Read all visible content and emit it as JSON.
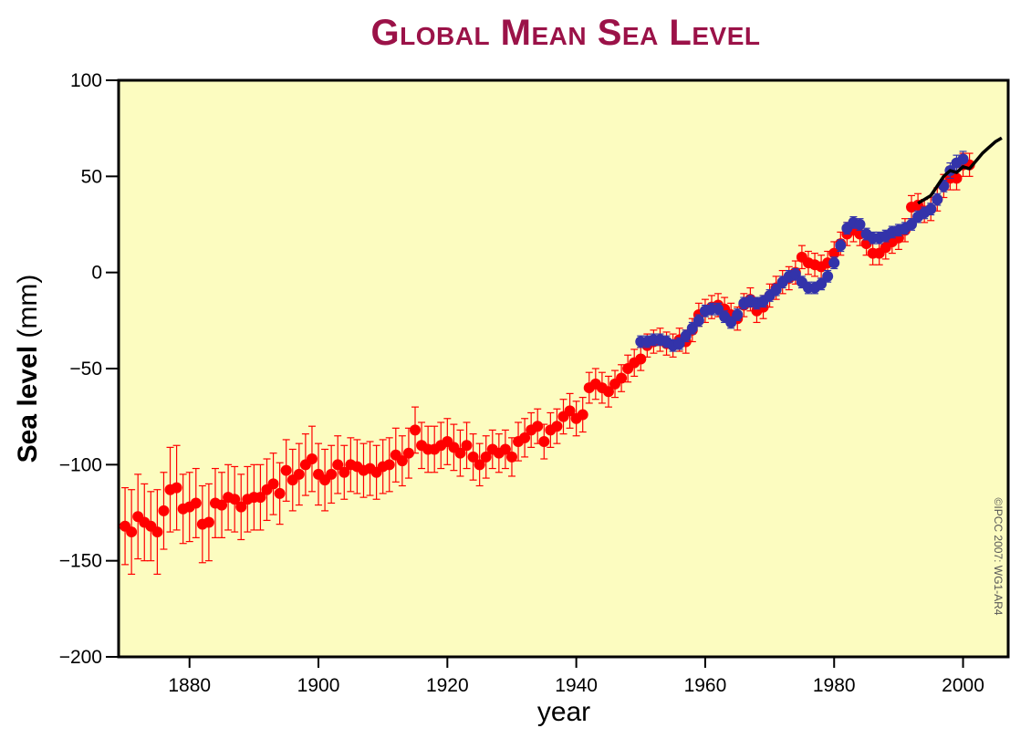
{
  "chart_data": {
    "type": "scatter",
    "title": "Global Mean Sea Level",
    "xlabel": "year",
    "ylabel": "Sea level (mm)",
    "xlim": [
      1869,
      2007
    ],
    "ylim": [
      -200,
      100
    ],
    "x_ticks": [
      1880,
      1900,
      1920,
      1940,
      1960,
      1980,
      2000
    ],
    "y_ticks": [
      100,
      50,
      0,
      -50,
      -100,
      -150,
      -200
    ],
    "y_tick_labels": [
      "100",
      "50",
      "0",
      "−50",
      "−100",
      "−150",
      "−200"
    ],
    "grid": false,
    "background_color": "#fcfcc0",
    "credit": "©IPCC 2007: WG1-AR4",
    "series": [
      {
        "color": "#ff0000",
        "marker": "circle-with-errorbars",
        "points": [
          [
            1870,
            -132,
            20
          ],
          [
            1871,
            -135,
            22
          ],
          [
            1872,
            -127,
            22
          ],
          [
            1873,
            -130,
            20
          ],
          [
            1874,
            -132,
            18
          ],
          [
            1875,
            -135,
            22
          ],
          [
            1876,
            -124,
            20
          ],
          [
            1877,
            -113,
            22
          ],
          [
            1878,
            -112,
            22
          ],
          [
            1879,
            -123,
            18
          ],
          [
            1880,
            -122,
            18
          ],
          [
            1881,
            -120,
            18
          ],
          [
            1882,
            -131,
            20
          ],
          [
            1883,
            -130,
            20
          ],
          [
            1884,
            -120,
            18
          ],
          [
            1885,
            -121,
            17
          ],
          [
            1886,
            -117,
            17
          ],
          [
            1887,
            -118,
            17
          ],
          [
            1888,
            -122,
            17
          ],
          [
            1889,
            -118,
            17
          ],
          [
            1890,
            -117,
            17
          ],
          [
            1891,
            -117,
            17
          ],
          [
            1892,
            -113,
            16
          ],
          [
            1893,
            -110,
            16
          ],
          [
            1894,
            -115,
            16
          ],
          [
            1895,
            -103,
            16
          ],
          [
            1896,
            -108,
            16
          ],
          [
            1897,
            -105,
            16
          ],
          [
            1898,
            -100,
            16
          ],
          [
            1899,
            -97,
            17
          ],
          [
            1900,
            -105,
            16
          ],
          [
            1901,
            -108,
            16
          ],
          [
            1902,
            -105,
            15
          ],
          [
            1903,
            -100,
            15
          ],
          [
            1904,
            -104,
            14
          ],
          [
            1905,
            -100,
            14
          ],
          [
            1906,
            -101,
            14
          ],
          [
            1907,
            -103,
            14
          ],
          [
            1908,
            -102,
            14
          ],
          [
            1909,
            -104,
            14
          ],
          [
            1910,
            -101,
            14
          ],
          [
            1911,
            -100,
            14
          ],
          [
            1912,
            -95,
            14
          ],
          [
            1913,
            -98,
            13
          ],
          [
            1914,
            -94,
            13
          ],
          [
            1915,
            -82,
            12
          ],
          [
            1916,
            -90,
            12
          ],
          [
            1917,
            -92,
            12
          ],
          [
            1918,
            -92,
            12
          ],
          [
            1919,
            -90,
            12
          ],
          [
            1920,
            -88,
            12
          ],
          [
            1921,
            -91,
            12
          ],
          [
            1922,
            -94,
            12
          ],
          [
            1923,
            -90,
            12
          ],
          [
            1924,
            -96,
            12
          ],
          [
            1925,
            -100,
            11
          ],
          [
            1926,
            -96,
            11
          ],
          [
            1927,
            -92,
            10
          ],
          [
            1928,
            -94,
            10
          ],
          [
            1929,
            -92,
            10
          ],
          [
            1930,
            -96,
            10
          ],
          [
            1931,
            -88,
            10
          ],
          [
            1932,
            -86,
            10
          ],
          [
            1933,
            -82,
            9
          ],
          [
            1934,
            -80,
            9
          ],
          [
            1935,
            -88,
            9
          ],
          [
            1936,
            -82,
            9
          ],
          [
            1937,
            -80,
            9
          ],
          [
            1938,
            -75,
            9
          ],
          [
            1939,
            -72,
            9
          ],
          [
            1940,
            -76,
            9
          ],
          [
            1941,
            -74,
            9
          ],
          [
            1942,
            -60,
            8
          ],
          [
            1943,
            -58,
            8
          ],
          [
            1944,
            -60,
            8
          ],
          [
            1945,
            -62,
            8
          ],
          [
            1946,
            -58,
            7
          ],
          [
            1947,
            -55,
            7
          ],
          [
            1948,
            -50,
            7
          ],
          [
            1949,
            -47,
            7
          ],
          [
            1950,
            -45,
            6
          ],
          [
            1951,
            -38,
            6
          ],
          [
            1952,
            -36,
            6
          ],
          [
            1953,
            -35,
            6
          ],
          [
            1954,
            -37,
            6
          ],
          [
            1955,
            -38,
            6
          ],
          [
            1956,
            -35,
            6
          ],
          [
            1957,
            -36,
            6
          ],
          [
            1958,
            -30,
            6
          ],
          [
            1959,
            -22,
            6
          ],
          [
            1960,
            -20,
            6
          ],
          [
            1961,
            -18,
            6
          ],
          [
            1962,
            -17,
            6
          ],
          [
            1963,
            -19,
            6
          ],
          [
            1964,
            -22,
            6
          ],
          [
            1965,
            -24,
            6
          ],
          [
            1966,
            -17,
            6
          ],
          [
            1967,
            -14,
            6
          ],
          [
            1968,
            -20,
            6
          ],
          [
            1969,
            -18,
            6
          ],
          [
            1970,
            -12,
            6
          ],
          [
            1971,
            -8,
            6
          ],
          [
            1972,
            -5,
            6
          ],
          [
            1973,
            -3,
            6
          ],
          [
            1974,
            0,
            6
          ],
          [
            1975,
            8,
            6
          ],
          [
            1976,
            5,
            6
          ],
          [
            1977,
            4,
            6
          ],
          [
            1978,
            3,
            6
          ],
          [
            1979,
            5,
            6
          ],
          [
            1980,
            10,
            6
          ],
          [
            1981,
            15,
            6
          ],
          [
            1982,
            20,
            6
          ],
          [
            1983,
            22,
            6
          ],
          [
            1984,
            20,
            6
          ],
          [
            1985,
            15,
            6
          ],
          [
            1986,
            10,
            6
          ],
          [
            1987,
            10,
            6
          ],
          [
            1988,
            13,
            6
          ],
          [
            1989,
            16,
            6
          ],
          [
            1990,
            18,
            6
          ],
          [
            1991,
            22,
            6
          ],
          [
            1992,
            34,
            6
          ],
          [
            1993,
            35,
            6
          ],
          [
            1994,
            32,
            6
          ],
          [
            1995,
            33,
            6
          ],
          [
            1996,
            38,
            6
          ],
          [
            1997,
            45,
            6
          ],
          [
            1998,
            49,
            6
          ],
          [
            1999,
            49,
            6
          ],
          [
            2000,
            56,
            6
          ],
          [
            2001,
            56,
            6
          ]
        ]
      },
      {
        "color": "#3333aa",
        "marker": "circle-with-errorbars",
        "points": [
          [
            1950,
            -36,
            3
          ],
          [
            1951,
            -36,
            3
          ],
          [
            1952,
            -35,
            3
          ],
          [
            1953,
            -35,
            3
          ],
          [
            1954,
            -36,
            3
          ],
          [
            1955,
            -38,
            3
          ],
          [
            1956,
            -37,
            3
          ],
          [
            1957,
            -33,
            3
          ],
          [
            1958,
            -29,
            3
          ],
          [
            1959,
            -25,
            3
          ],
          [
            1960,
            -20,
            3
          ],
          [
            1961,
            -19,
            3
          ],
          [
            1962,
            -19,
            3
          ],
          [
            1963,
            -23,
            3
          ],
          [
            1964,
            -26,
            3
          ],
          [
            1965,
            -22,
            3
          ],
          [
            1966,
            -16,
            3
          ],
          [
            1967,
            -15,
            3
          ],
          [
            1968,
            -16,
            3
          ],
          [
            1969,
            -15,
            3
          ],
          [
            1970,
            -12,
            3
          ],
          [
            1971,
            -9,
            3
          ],
          [
            1972,
            -5,
            3
          ],
          [
            1973,
            -2,
            3
          ],
          [
            1974,
            -1,
            3
          ],
          [
            1975,
            -5,
            3
          ],
          [
            1976,
            -8,
            3
          ],
          [
            1977,
            -8,
            3
          ],
          [
            1978,
            -6,
            3
          ],
          [
            1979,
            -2,
            3
          ],
          [
            1980,
            5,
            3
          ],
          [
            1981,
            14,
            3
          ],
          [
            1982,
            23,
            3
          ],
          [
            1983,
            26,
            3
          ],
          [
            1984,
            25,
            3
          ],
          [
            1985,
            20,
            3
          ],
          [
            1986,
            18,
            3
          ],
          [
            1987,
            18,
            3
          ],
          [
            1988,
            19,
            3
          ],
          [
            1989,
            21,
            3
          ],
          [
            1990,
            22,
            3
          ],
          [
            1991,
            23,
            3
          ],
          [
            1992,
            25,
            3
          ],
          [
            1993,
            29,
            3
          ],
          [
            1994,
            31,
            3
          ],
          [
            1995,
            33,
            3
          ],
          [
            1996,
            38,
            3
          ],
          [
            1997,
            45,
            3
          ],
          [
            1998,
            53,
            4
          ],
          [
            1999,
            57,
            4
          ],
          [
            2000,
            59,
            4
          ]
        ]
      },
      {
        "color": "#000000",
        "marker": "line",
        "points": [
          [
            1993,
            36
          ],
          [
            1994,
            38
          ],
          [
            1995,
            40
          ],
          [
            1996,
            45
          ],
          [
            1997,
            50
          ],
          [
            1998,
            53
          ],
          [
            1999,
            52
          ],
          [
            2000,
            55
          ],
          [
            2001,
            54
          ],
          [
            2002,
            58
          ],
          [
            2003,
            62
          ],
          [
            2004,
            65
          ],
          [
            2005,
            68
          ],
          [
            2006,
            70
          ]
        ]
      }
    ]
  }
}
